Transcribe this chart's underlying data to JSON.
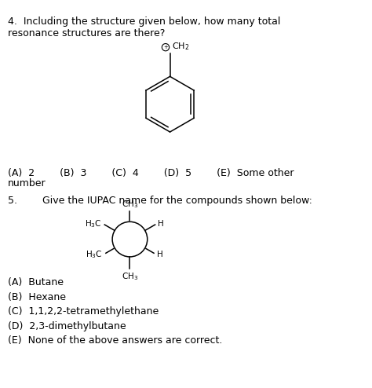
{
  "bg_color": "#ffffff",
  "text_color": "#000000",
  "question4_text": "4.  Including the structure given below, how many total\nresonance structures are there?",
  "q4_options_line1": "(A)  2        (B)  3        (C)  4        (D)  5        (E)  Some other",
  "q4_options_line2": "number",
  "question5_text": "5.        Give the IUPAC name for the compounds shown below:",
  "q5_options": [
    "(A)  Butane",
    "(B)  Hexane",
    "(C)  1,1,2,2-tetramethylethane",
    "(D)  2,3-dimethylbutane",
    "(E)  None of the above answers are correct."
  ]
}
